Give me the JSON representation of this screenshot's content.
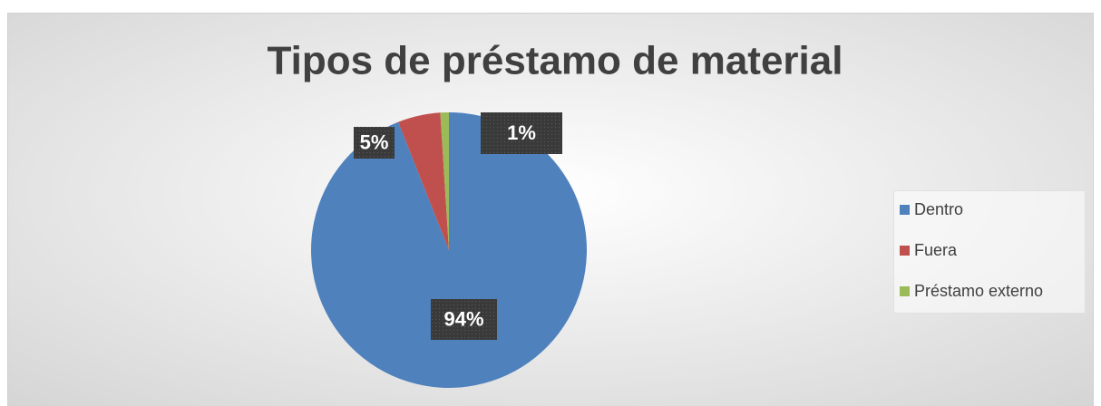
{
  "chart_data": {
    "type": "pie",
    "title": "Tipos de préstamo de material",
    "categories": [
      "Dentro",
      "Fuera",
      "Préstamo externo"
    ],
    "values": [
      94,
      5,
      1
    ],
    "value_labels": [
      "94%",
      "5%",
      "1%"
    ],
    "colors": [
      "#4f81bd",
      "#c0504d",
      "#9bbb59"
    ],
    "legend": "right"
  }
}
